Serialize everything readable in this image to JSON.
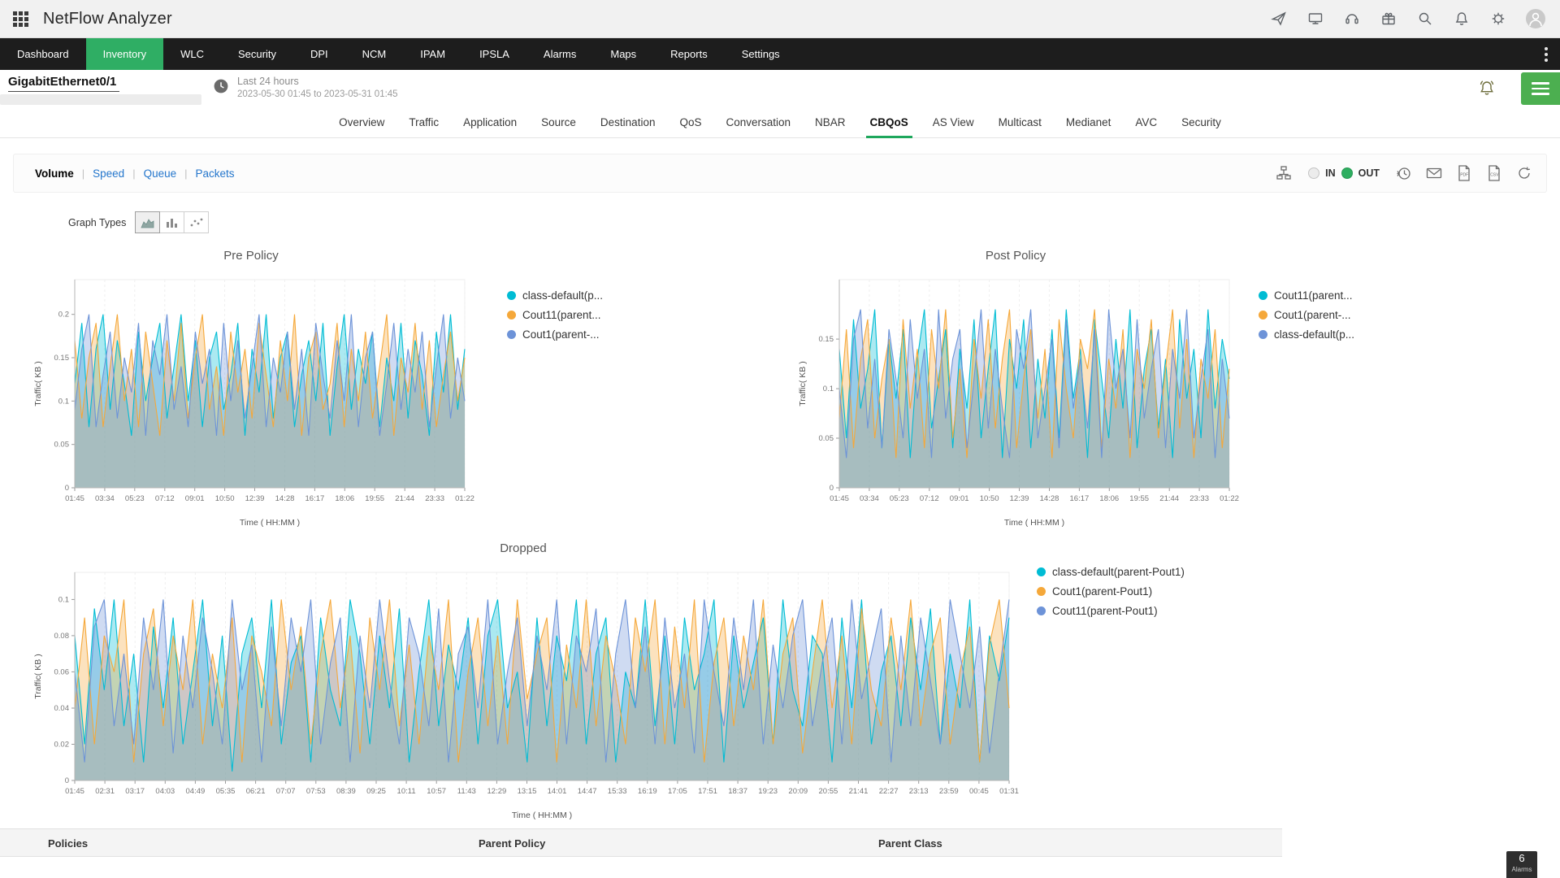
{
  "header": {
    "app_title": "NetFlow Analyzer",
    "action_icons": [
      "apps-grid",
      "launch",
      "demo-screen",
      "support",
      "whats-new",
      "search",
      "notifications",
      "settings",
      "account"
    ]
  },
  "nav": {
    "items": [
      {
        "label": "Dashboard",
        "active": false
      },
      {
        "label": "Inventory",
        "active": true
      },
      {
        "label": "WLC",
        "active": false
      },
      {
        "label": "Security",
        "active": false
      },
      {
        "label": "DPI",
        "active": false
      },
      {
        "label": "NCM",
        "active": false
      },
      {
        "label": "IPAM",
        "active": false
      },
      {
        "label": "IPSLA",
        "active": false
      },
      {
        "label": "Alarms",
        "active": false
      },
      {
        "label": "Maps",
        "active": false
      },
      {
        "label": "Reports",
        "active": false
      },
      {
        "label": "Settings",
        "active": false
      }
    ]
  },
  "interface": {
    "name": "GigabitEthernet0/1",
    "time_range_label": "Last 24 hours",
    "time_range_detail": "2023-05-30 01:45 to 2023-05-31 01:45"
  },
  "tabs": {
    "items": [
      {
        "label": "Overview",
        "active": false
      },
      {
        "label": "Traffic",
        "active": false
      },
      {
        "label": "Application",
        "active": false
      },
      {
        "label": "Source",
        "active": false
      },
      {
        "label": "Destination",
        "active": false
      },
      {
        "label": "QoS",
        "active": false
      },
      {
        "label": "Conversation",
        "active": false
      },
      {
        "label": "NBAR",
        "active": false
      },
      {
        "label": "CBQoS",
        "active": true
      },
      {
        "label": "AS View",
        "active": false
      },
      {
        "label": "Multicast",
        "active": false
      },
      {
        "label": "Medianet",
        "active": false
      },
      {
        "label": "AVC",
        "active": false
      },
      {
        "label": "Security",
        "active": false
      }
    ]
  },
  "metric_tabs": {
    "items": [
      {
        "label": "Volume",
        "active": true
      },
      {
        "label": "Speed",
        "active": false
      },
      {
        "label": "Queue",
        "active": false
      },
      {
        "label": "Packets",
        "active": false
      }
    ]
  },
  "direction_toggle": {
    "options": [
      {
        "label": "IN",
        "selected": false
      },
      {
        "label": "OUT",
        "selected": true
      }
    ]
  },
  "export_icons": [
    "topology",
    "schedule-history",
    "email",
    "pdf-export",
    "csv-export",
    "refresh"
  ],
  "graph_types": {
    "label": "Graph Types",
    "options": [
      "area",
      "bar",
      "scatter"
    ],
    "selected": "area"
  },
  "table": {
    "columns": [
      "Policies",
      "Parent Policy",
      "Parent Class"
    ]
  },
  "alarms_badge": {
    "count": "6",
    "label": "Alarms"
  },
  "colors": {
    "brand_green": "#2fae64",
    "link_blue": "#2476cc",
    "series_cyan": "#00bcd4",
    "series_orange": "#f5a83a",
    "series_blue": "#6d93d8"
  },
  "chart_data": [
    {
      "type": "area",
      "title": "Pre Policy",
      "ylabel": "Traffic( KB )",
      "xlabel": "Time ( HH:MM )",
      "ylim": [
        0,
        0.24
      ],
      "yticks": [
        0,
        0.05,
        0.1,
        0.15,
        0.2
      ],
      "xticklabels": [
        "01:45",
        "03:34",
        "05:23",
        "07:12",
        "09:01",
        "10:50",
        "12:39",
        "14:28",
        "16:17",
        "18:06",
        "19:55",
        "21:44",
        "23:33",
        "01:22"
      ],
      "grid": true,
      "legend_position": "right",
      "series": [
        {
          "label": "class-default(p...",
          "color": "#00bcd4",
          "values": [
            0.12,
            0.19,
            0.07,
            0.16,
            0.2,
            0.09,
            0.17,
            0.12,
            0.06,
            0.18,
            0.1,
            0.15,
            0.19,
            0.08,
            0.14,
            0.2,
            0.1,
            0.17,
            0.07,
            0.15,
            0.18,
            0.09,
            0.13,
            0.19,
            0.06,
            0.16,
            0.11,
            0.2,
            0.08,
            0.15,
            0.18,
            0.07,
            0.13,
            0.17,
            0.1,
            0.19,
            0.06,
            0.14,
            0.2,
            0.09,
            0.16,
            0.12,
            0.18,
            0.07,
            0.15,
            0.1,
            0.19,
            0.08,
            0.17,
            0.13,
            0.06,
            0.18,
            0.11,
            0.2,
            0.09,
            0.16
          ]
        },
        {
          "label": "Cout11(parent...",
          "color": "#f5a83a",
          "values": [
            0.17,
            0.08,
            0.15,
            0.19,
            0.07,
            0.14,
            0.2,
            0.1,
            0.16,
            0.07,
            0.18,
            0.12,
            0.06,
            0.17,
            0.1,
            0.19,
            0.08,
            0.15,
            0.2,
            0.09,
            0.14,
            0.06,
            0.18,
            0.11,
            0.16,
            0.08,
            0.19,
            0.13,
            0.07,
            0.17,
            0.1,
            0.2,
            0.06,
            0.15,
            0.18,
            0.09,
            0.12,
            0.19,
            0.07,
            0.16,
            0.1,
            0.18,
            0.08,
            0.14,
            0.2,
            0.06,
            0.15,
            0.11,
            0.19,
            0.09,
            0.17,
            0.07,
            0.13,
            0.18,
            0.1,
            0.15
          ]
        },
        {
          "label": "Cout1(parent-...",
          "color": "#6d93d8",
          "values": [
            0.09,
            0.16,
            0.2,
            0.07,
            0.13,
            0.18,
            0.08,
            0.15,
            0.11,
            0.19,
            0.06,
            0.17,
            0.13,
            0.2,
            0.09,
            0.14,
            0.07,
            0.18,
            0.12,
            0.16,
            0.06,
            0.19,
            0.1,
            0.17,
            0.08,
            0.14,
            0.2,
            0.07,
            0.15,
            0.11,
            0.18,
            0.09,
            0.16,
            0.06,
            0.19,
            0.13,
            0.08,
            0.17,
            0.1,
            0.2,
            0.07,
            0.15,
            0.18,
            0.06,
            0.12,
            0.19,
            0.09,
            0.16,
            0.11,
            0.18,
            0.07,
            0.14,
            0.2,
            0.08,
            0.15,
            0.1
          ]
        }
      ]
    },
    {
      "type": "area",
      "title": "Post Policy",
      "ylabel": "Traffic( KB )",
      "xlabel": "Time ( HH:MM )",
      "ylim": [
        0,
        0.21
      ],
      "yticks": [
        0,
        0.05,
        0.1,
        0.15
      ],
      "xticklabels": [
        "01:45",
        "03:34",
        "05:23",
        "07:12",
        "09:01",
        "10:50",
        "12:39",
        "14:28",
        "16:17",
        "18:06",
        "19:55",
        "21:44",
        "23:33",
        "01:22"
      ],
      "grid": true,
      "legend_position": "right",
      "series": [
        {
          "label": "Cout11(parent...",
          "color": "#00bcd4",
          "values": [
            0.14,
            0.05,
            0.17,
            0.08,
            0.12,
            0.18,
            0.04,
            0.15,
            0.09,
            0.16,
            0.03,
            0.13,
            0.18,
            0.06,
            0.11,
            0.16,
            0.04,
            0.14,
            0.08,
            0.17,
            0.05,
            0.12,
            0.18,
            0.03,
            0.15,
            0.1,
            0.17,
            0.04,
            0.13,
            0.07,
            0.16,
            0.05,
            0.18,
            0.09,
            0.14,
            0.03,
            0.17,
            0.11,
            0.05,
            0.15,
            0.08,
            0.18,
            0.04,
            0.12,
            0.16,
            0.06,
            0.13,
            0.03,
            0.17,
            0.09,
            0.14,
            0.05,
            0.18,
            0.08,
            0.15,
            0.11
          ]
        },
        {
          "label": "Cout1(parent-...",
          "color": "#f5a83a",
          "values": [
            0.07,
            0.16,
            0.04,
            0.13,
            0.17,
            0.05,
            0.11,
            0.15,
            0.03,
            0.17,
            0.08,
            0.14,
            0.04,
            0.16,
            0.1,
            0.18,
            0.05,
            0.12,
            0.03,
            0.15,
            0.09,
            0.17,
            0.06,
            0.13,
            0.18,
            0.04,
            0.11,
            0.16,
            0.07,
            0.14,
            0.03,
            0.17,
            0.1,
            0.05,
            0.15,
            0.12,
            0.18,
            0.04,
            0.13,
            0.08,
            0.16,
            0.03,
            0.14,
            0.1,
            0.17,
            0.05,
            0.12,
            0.18,
            0.06,
            0.15,
            0.03,
            0.13,
            0.09,
            0.16,
            0.04,
            0.12
          ]
        },
        {
          "label": "class-default(p...",
          "color": "#6d93d8",
          "values": [
            0.1,
            0.03,
            0.15,
            0.18,
            0.06,
            0.13,
            0.04,
            0.16,
            0.11,
            0.05,
            0.17,
            0.09,
            0.14,
            0.03,
            0.18,
            0.07,
            0.13,
            0.16,
            0.04,
            0.11,
            0.18,
            0.06,
            0.14,
            0.08,
            0.03,
            0.16,
            0.12,
            0.18,
            0.05,
            0.1,
            0.15,
            0.04,
            0.17,
            0.08,
            0.13,
            0.06,
            0.16,
            0.03,
            0.18,
            0.1,
            0.14,
            0.05,
            0.17,
            0.07,
            0.12,
            0.16,
            0.04,
            0.14,
            0.09,
            0.18,
            0.05,
            0.11,
            0.16,
            0.03,
            0.13,
            0.07
          ]
        }
      ]
    },
    {
      "type": "area",
      "title": "Dropped",
      "ylabel": "Traffic( KB )",
      "xlabel": "Time ( HH:MM )",
      "ylim": [
        0,
        0.115
      ],
      "yticks": [
        0,
        0.02,
        0.04,
        0.06,
        0.08,
        0.1
      ],
      "xticklabels": [
        "01:45",
        "02:31",
        "03:17",
        "04:03",
        "04:49",
        "05:35",
        "06:21",
        "07:07",
        "07:53",
        "08:39",
        "09:25",
        "10:11",
        "10:57",
        "11:43",
        "12:29",
        "13:15",
        "14:01",
        "14:47",
        "15:33",
        "16:19",
        "17:05",
        "17:51",
        "18:37",
        "19:23",
        "20:09",
        "20:55",
        "21:41",
        "22:27",
        "23:13",
        "23:59",
        "00:45",
        "01:31"
      ],
      "grid": true,
      "legend_position": "right",
      "series": [
        {
          "label": "class-default(parent-Pout1)",
          "color": "#00bcd4",
          "values": [
            0.08,
            0.02,
            0.095,
            0.05,
            0.1,
            0.03,
            0.07,
            0.01,
            0.085,
            0.04,
            0.09,
            0.02,
            0.06,
            0.1,
            0.03,
            0.08,
            0.005,
            0.07,
            0.09,
            0.04,
            0.1,
            0.02,
            0.065,
            0.08,
            0.01,
            0.09,
            0.05,
            0.03,
            0.1,
            0.07,
            0.02,
            0.08,
            0.04,
            0.095,
            0.01,
            0.06,
            0.1,
            0.03,
            0.075,
            0.05,
            0.09,
            0.02,
            0.08,
            0.1,
            0.04,
            0.06,
            0.01,
            0.09,
            0.03,
            0.08,
            0.055,
            0.1,
            0.02,
            0.07,
            0.09,
            0.01,
            0.06,
            0.04,
            0.1,
            0.03,
            0.08,
            0.02,
            0.09,
            0.05,
            0.07,
            0.1,
            0.01,
            0.08,
            0.04,
            0.065,
            0.09,
            0.02,
            0.1,
            0.05,
            0.03,
            0.08,
            0.07,
            0.01,
            0.09,
            0.04,
            0.1,
            0.02,
            0.06,
            0.08,
            0.03,
            0.09,
            0.05,
            0.095,
            0.02,
            0.07,
            0.04,
            0.1,
            0.01,
            0.08,
            0.055,
            0.09
          ]
        },
        {
          "label": "Cout1(parent-Pout1)",
          "color": "#f5a83a",
          "values": [
            0.04,
            0.09,
            0.02,
            0.08,
            0.06,
            0.1,
            0.01,
            0.07,
            0.095,
            0.03,
            0.08,
            0.05,
            0.1,
            0.02,
            0.07,
            0.04,
            0.09,
            0.01,
            0.08,
            0.06,
            0.03,
            0.1,
            0.05,
            0.085,
            0.02,
            0.07,
            0.1,
            0.04,
            0.08,
            0.015,
            0.09,
            0.05,
            0.1,
            0.03,
            0.075,
            0.02,
            0.08,
            0.05,
            0.1,
            0.01,
            0.06,
            0.09,
            0.03,
            0.08,
            0.02,
            0.1,
            0.045,
            0.07,
            0.09,
            0.01,
            0.075,
            0.04,
            0.1,
            0.03,
            0.08,
            0.055,
            0.02,
            0.09,
            0.06,
            0.1,
            0.02,
            0.085,
            0.04,
            0.1,
            0.01,
            0.065,
            0.09,
            0.03,
            0.08,
            0.05,
            0.1,
            0.02,
            0.07,
            0.09,
            0.015,
            0.06,
            0.1,
            0.04,
            0.08,
            0.02,
            0.095,
            0.05,
            0.03,
            0.09,
            0.05,
            0.1,
            0.03,
            0.07,
            0.09,
            0.02,
            0.06,
            0.085,
            0.01,
            0.075,
            0.1,
            0.04
          ]
        },
        {
          "label": "Cout11(parent-Pout1)",
          "color": "#6d93d8",
          "values": [
            0.06,
            0.01,
            0.085,
            0.1,
            0.03,
            0.07,
            0.02,
            0.09,
            0.05,
            0.1,
            0.015,
            0.08,
            0.04,
            0.09,
            0.06,
            0.02,
            0.1,
            0.05,
            0.075,
            0.01,
            0.085,
            0.03,
            0.09,
            0.06,
            0.1,
            0.02,
            0.065,
            0.09,
            0.01,
            0.08,
            0.04,
            0.1,
            0.055,
            0.02,
            0.09,
            0.07,
            0.03,
            0.095,
            0.01,
            0.07,
            0.085,
            0.04,
            0.1,
            0.02,
            0.06,
            0.09,
            0.03,
            0.08,
            0.05,
            0.1,
            0.02,
            0.08,
            0.06,
            0.095,
            0.01,
            0.07,
            0.1,
            0.04,
            0.085,
            0.02,
            0.09,
            0.04,
            0.07,
            0.015,
            0.1,
            0.06,
            0.03,
            0.09,
            0.05,
            0.1,
            0.02,
            0.075,
            0.04,
            0.08,
            0.1,
            0.03,
            0.065,
            0.09,
            0.02,
            0.1,
            0.045,
            0.07,
            0.095,
            0.01,
            0.08,
            0.03,
            0.09,
            0.055,
            0.02,
            0.1,
            0.07,
            0.04,
            0.085,
            0.015,
            0.06,
            0.1
          ]
        }
      ]
    }
  ]
}
